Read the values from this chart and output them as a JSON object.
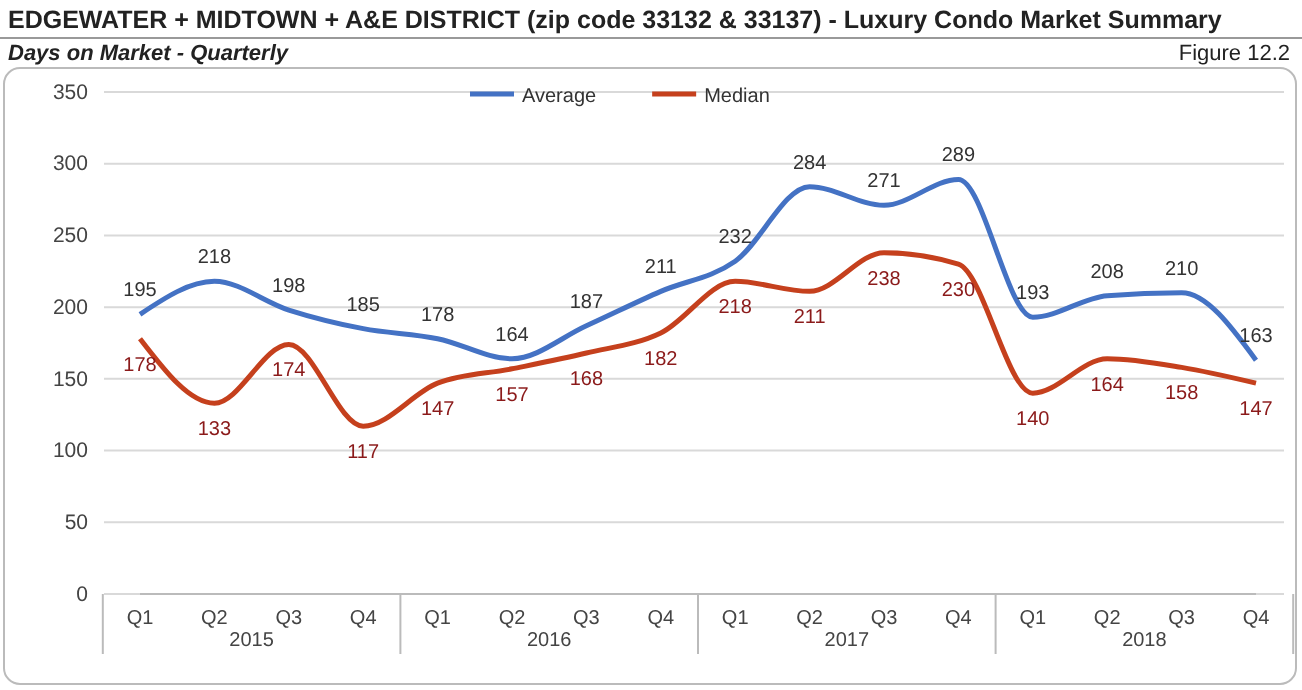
{
  "chart_data": {
    "type": "line",
    "title": "EDGEWATER + MIDTOWN + A&E DISTRICT (zip code 33132 & 33137) - Luxury Condo Market Summary",
    "subtitle": "Days on Market - Quarterly",
    "annotations": [
      "Figure 12.2",
      "2015",
      "2016",
      "2017",
      "2018"
    ],
    "categories": [
      "Q1",
      "Q2",
      "Q3",
      "Q4",
      "Q1",
      "Q2",
      "Q3",
      "Q4",
      "Q1",
      "Q2",
      "Q3",
      "Q4",
      "Q1",
      "Q2",
      "Q3",
      "Q4"
    ],
    "series": [
      {
        "name": "Average",
        "color": "#4472c4",
        "values": [
          195,
          218,
          198,
          185,
          178,
          164,
          187,
          211,
          232,
          284,
          271,
          289,
          193,
          208,
          210,
          163
        ]
      },
      {
        "name": "Median",
        "color": "#c5401d",
        "values": [
          178,
          133,
          174,
          117,
          147,
          157,
          168,
          182,
          218,
          211,
          238,
          230,
          140,
          164,
          158,
          147
        ]
      }
    ],
    "ylim": [
      0,
      350
    ],
    "yticks": [
      0,
      50,
      100,
      150,
      200,
      250,
      300,
      350
    ],
    "grid": "y",
    "legend": "top",
    "data_labels": true,
    "marker": "none",
    "line_style": "solid"
  }
}
